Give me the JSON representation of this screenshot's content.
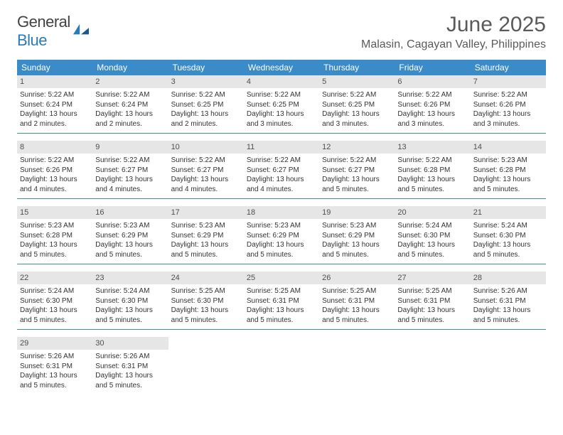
{
  "brand": {
    "part1": "General",
    "part2": "Blue"
  },
  "colors": {
    "header_bar": "#3b8bc9",
    "day_num_bg": "#e6e6e6",
    "brand_blue": "#2a7ab9",
    "text_dark": "#424242",
    "text_gray": "#5a5a5a"
  },
  "title": "June 2025",
  "location": "Malasin, Cagayan Valley, Philippines",
  "days_of_week": [
    "Sunday",
    "Monday",
    "Tuesday",
    "Wednesday",
    "Thursday",
    "Friday",
    "Saturday"
  ],
  "weeks": [
    [
      {
        "n": "1",
        "sunrise": "Sunrise: 5:22 AM",
        "sunset": "Sunset: 6:24 PM",
        "d1": "Daylight: 13 hours",
        "d2": "and 2 minutes."
      },
      {
        "n": "2",
        "sunrise": "Sunrise: 5:22 AM",
        "sunset": "Sunset: 6:24 PM",
        "d1": "Daylight: 13 hours",
        "d2": "and 2 minutes."
      },
      {
        "n": "3",
        "sunrise": "Sunrise: 5:22 AM",
        "sunset": "Sunset: 6:25 PM",
        "d1": "Daylight: 13 hours",
        "d2": "and 2 minutes."
      },
      {
        "n": "4",
        "sunrise": "Sunrise: 5:22 AM",
        "sunset": "Sunset: 6:25 PM",
        "d1": "Daylight: 13 hours",
        "d2": "and 3 minutes."
      },
      {
        "n": "5",
        "sunrise": "Sunrise: 5:22 AM",
        "sunset": "Sunset: 6:25 PM",
        "d1": "Daylight: 13 hours",
        "d2": "and 3 minutes."
      },
      {
        "n": "6",
        "sunrise": "Sunrise: 5:22 AM",
        "sunset": "Sunset: 6:26 PM",
        "d1": "Daylight: 13 hours",
        "d2": "and 3 minutes."
      },
      {
        "n": "7",
        "sunrise": "Sunrise: 5:22 AM",
        "sunset": "Sunset: 6:26 PM",
        "d1": "Daylight: 13 hours",
        "d2": "and 3 minutes."
      }
    ],
    [
      {
        "n": "8",
        "sunrise": "Sunrise: 5:22 AM",
        "sunset": "Sunset: 6:26 PM",
        "d1": "Daylight: 13 hours",
        "d2": "and 4 minutes."
      },
      {
        "n": "9",
        "sunrise": "Sunrise: 5:22 AM",
        "sunset": "Sunset: 6:27 PM",
        "d1": "Daylight: 13 hours",
        "d2": "and 4 minutes."
      },
      {
        "n": "10",
        "sunrise": "Sunrise: 5:22 AM",
        "sunset": "Sunset: 6:27 PM",
        "d1": "Daylight: 13 hours",
        "d2": "and 4 minutes."
      },
      {
        "n": "11",
        "sunrise": "Sunrise: 5:22 AM",
        "sunset": "Sunset: 6:27 PM",
        "d1": "Daylight: 13 hours",
        "d2": "and 4 minutes."
      },
      {
        "n": "12",
        "sunrise": "Sunrise: 5:22 AM",
        "sunset": "Sunset: 6:27 PM",
        "d1": "Daylight: 13 hours",
        "d2": "and 5 minutes."
      },
      {
        "n": "13",
        "sunrise": "Sunrise: 5:22 AM",
        "sunset": "Sunset: 6:28 PM",
        "d1": "Daylight: 13 hours",
        "d2": "and 5 minutes."
      },
      {
        "n": "14",
        "sunrise": "Sunrise: 5:23 AM",
        "sunset": "Sunset: 6:28 PM",
        "d1": "Daylight: 13 hours",
        "d2": "and 5 minutes."
      }
    ],
    [
      {
        "n": "15",
        "sunrise": "Sunrise: 5:23 AM",
        "sunset": "Sunset: 6:28 PM",
        "d1": "Daylight: 13 hours",
        "d2": "and 5 minutes."
      },
      {
        "n": "16",
        "sunrise": "Sunrise: 5:23 AM",
        "sunset": "Sunset: 6:29 PM",
        "d1": "Daylight: 13 hours",
        "d2": "and 5 minutes."
      },
      {
        "n": "17",
        "sunrise": "Sunrise: 5:23 AM",
        "sunset": "Sunset: 6:29 PM",
        "d1": "Daylight: 13 hours",
        "d2": "and 5 minutes."
      },
      {
        "n": "18",
        "sunrise": "Sunrise: 5:23 AM",
        "sunset": "Sunset: 6:29 PM",
        "d1": "Daylight: 13 hours",
        "d2": "and 5 minutes."
      },
      {
        "n": "19",
        "sunrise": "Sunrise: 5:23 AM",
        "sunset": "Sunset: 6:29 PM",
        "d1": "Daylight: 13 hours",
        "d2": "and 5 minutes."
      },
      {
        "n": "20",
        "sunrise": "Sunrise: 5:24 AM",
        "sunset": "Sunset: 6:30 PM",
        "d1": "Daylight: 13 hours",
        "d2": "and 5 minutes."
      },
      {
        "n": "21",
        "sunrise": "Sunrise: 5:24 AM",
        "sunset": "Sunset: 6:30 PM",
        "d1": "Daylight: 13 hours",
        "d2": "and 5 minutes."
      }
    ],
    [
      {
        "n": "22",
        "sunrise": "Sunrise: 5:24 AM",
        "sunset": "Sunset: 6:30 PM",
        "d1": "Daylight: 13 hours",
        "d2": "and 5 minutes."
      },
      {
        "n": "23",
        "sunrise": "Sunrise: 5:24 AM",
        "sunset": "Sunset: 6:30 PM",
        "d1": "Daylight: 13 hours",
        "d2": "and 5 minutes."
      },
      {
        "n": "24",
        "sunrise": "Sunrise: 5:25 AM",
        "sunset": "Sunset: 6:30 PM",
        "d1": "Daylight: 13 hours",
        "d2": "and 5 minutes."
      },
      {
        "n": "25",
        "sunrise": "Sunrise: 5:25 AM",
        "sunset": "Sunset: 6:31 PM",
        "d1": "Daylight: 13 hours",
        "d2": "and 5 minutes."
      },
      {
        "n": "26",
        "sunrise": "Sunrise: 5:25 AM",
        "sunset": "Sunset: 6:31 PM",
        "d1": "Daylight: 13 hours",
        "d2": "and 5 minutes."
      },
      {
        "n": "27",
        "sunrise": "Sunrise: 5:25 AM",
        "sunset": "Sunset: 6:31 PM",
        "d1": "Daylight: 13 hours",
        "d2": "and 5 minutes."
      },
      {
        "n": "28",
        "sunrise": "Sunrise: 5:26 AM",
        "sunset": "Sunset: 6:31 PM",
        "d1": "Daylight: 13 hours",
        "d2": "and 5 minutes."
      }
    ],
    [
      {
        "n": "29",
        "sunrise": "Sunrise: 5:26 AM",
        "sunset": "Sunset: 6:31 PM",
        "d1": "Daylight: 13 hours",
        "d2": "and 5 minutes."
      },
      {
        "n": "30",
        "sunrise": "Sunrise: 5:26 AM",
        "sunset": "Sunset: 6:31 PM",
        "d1": "Daylight: 13 hours",
        "d2": "and 5 minutes."
      },
      null,
      null,
      null,
      null,
      null
    ]
  ]
}
